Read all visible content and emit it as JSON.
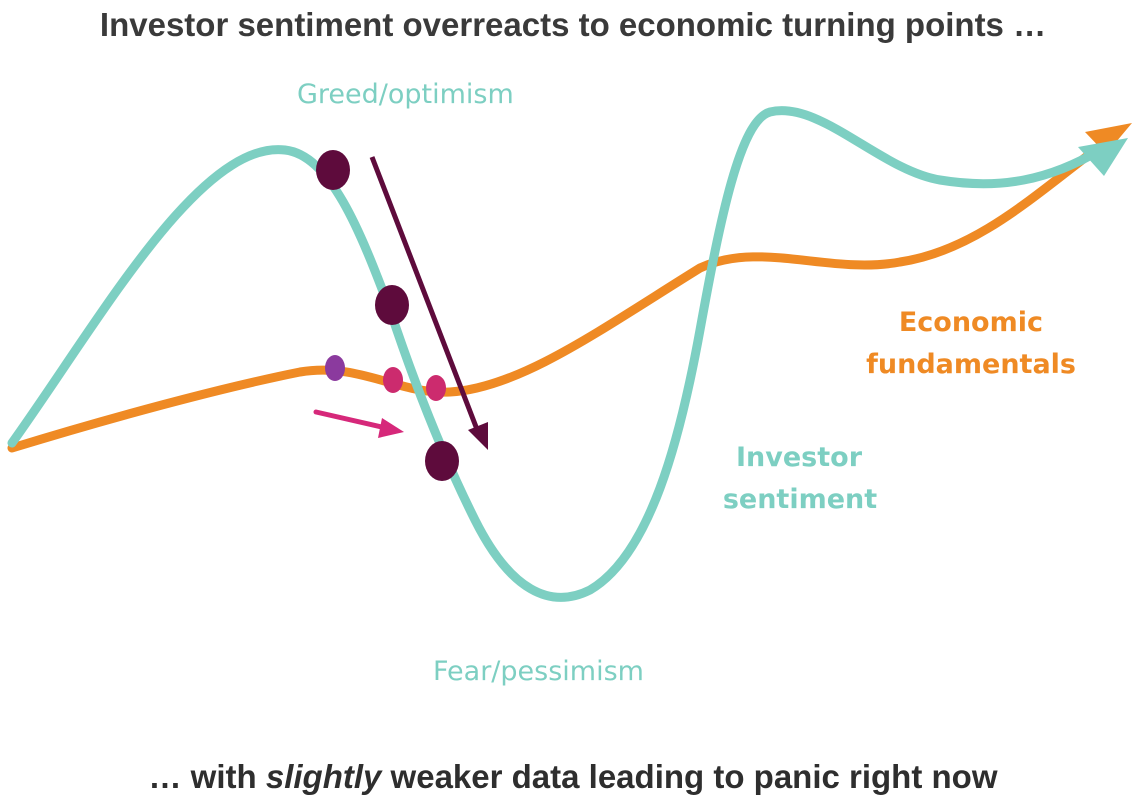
{
  "title": "Investor sentiment overreacts to economic turning points …",
  "subtitle": {
    "part1": "… with ",
    "emphasis": "slightly",
    "part2": " weaker data leading to panic right now"
  },
  "labels": {
    "greed": "Greed/optimism",
    "fear": "Fear/pessimism",
    "economic_line1": "Economic",
    "economic_line2": "fundamentals",
    "investor_line1": "Investor",
    "investor_line2": "sentiment"
  },
  "colors": {
    "sentiment": "#7dcfc2",
    "fundamentals": "#ef8a24",
    "dark_markers": "#5e0b3c",
    "pink_markers": "#cc2b6e",
    "pink_arrow": "#d6287a"
  }
}
